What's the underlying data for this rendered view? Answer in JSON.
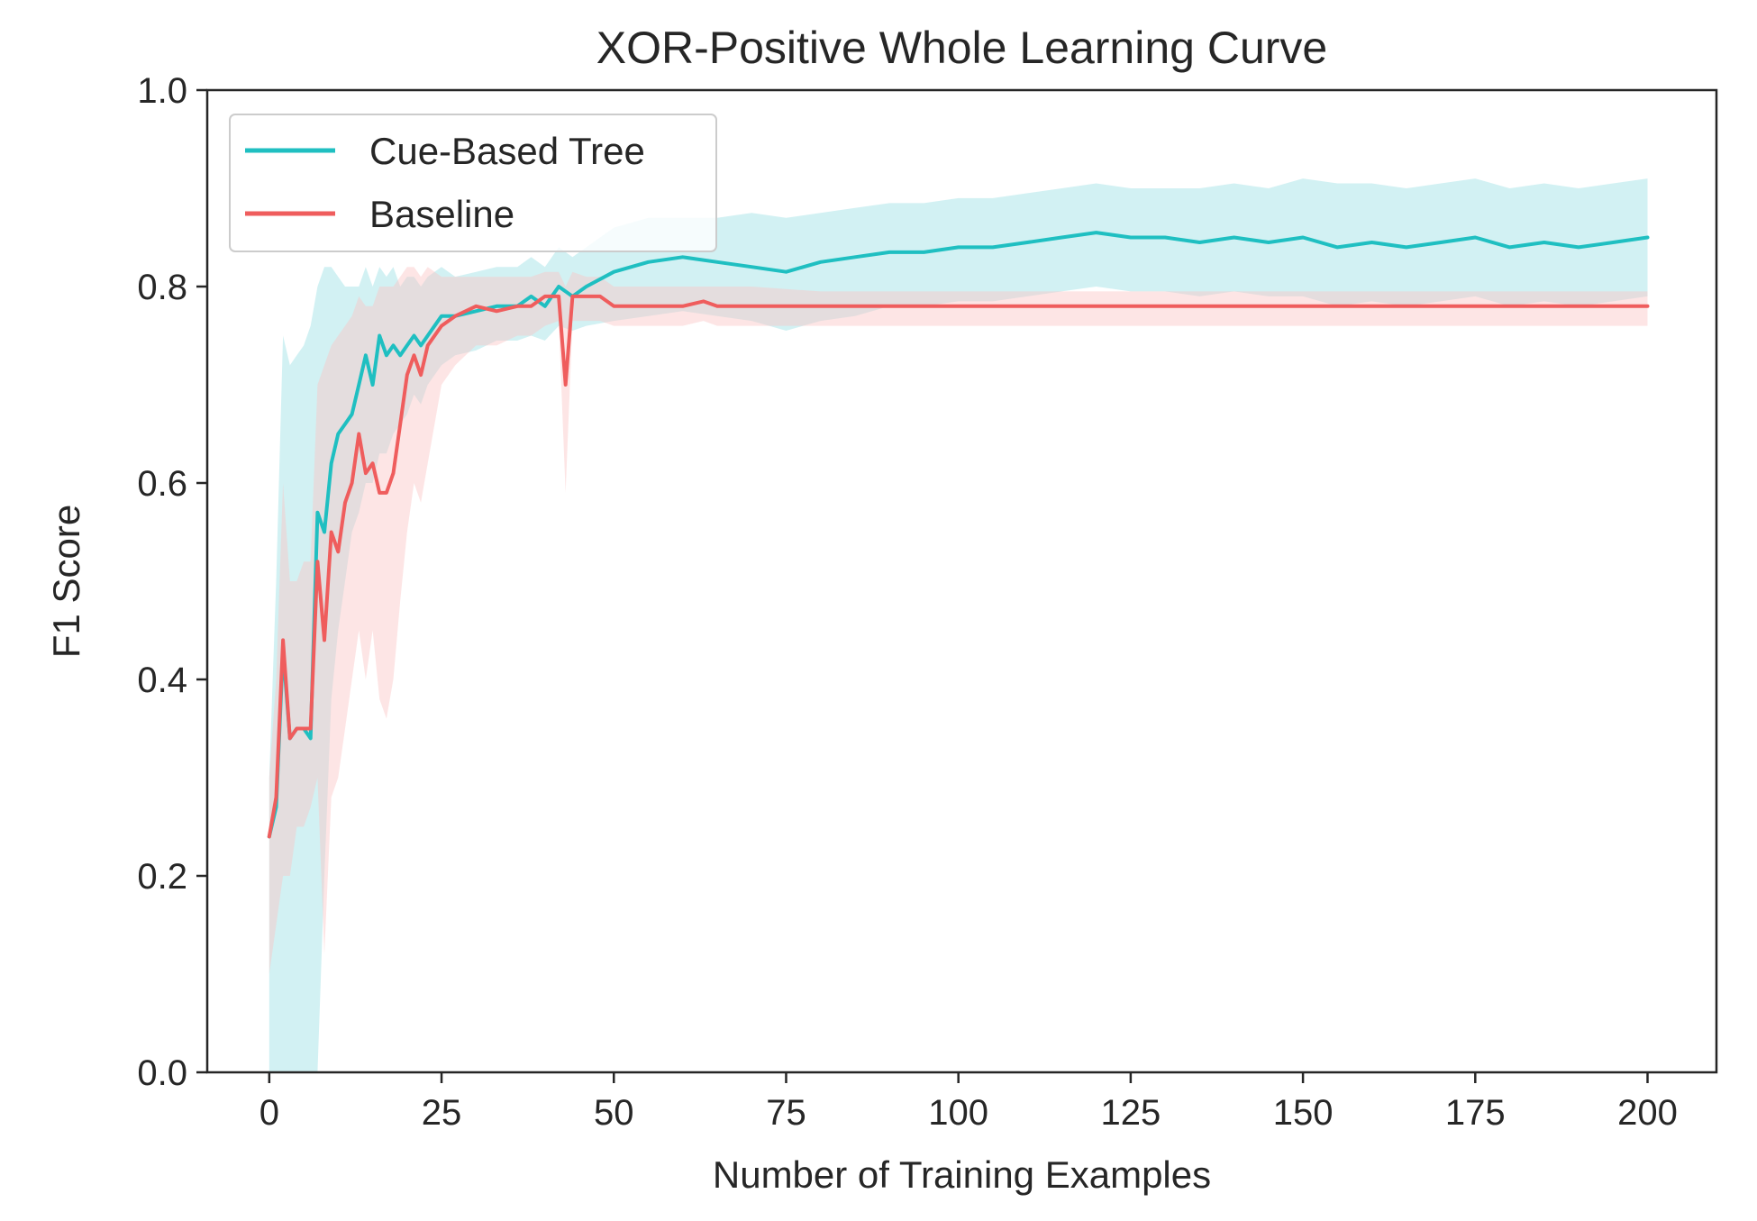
{
  "chart_data": {
    "type": "line",
    "title": "XOR-Positive Whole Learning Curve",
    "xlabel": "Number of Training Examples",
    "ylabel": "F1 Score",
    "xlim": [
      -9,
      210
    ],
    "ylim": [
      0.0,
      1.0
    ],
    "xticks": [
      0,
      25,
      50,
      75,
      100,
      125,
      150,
      175,
      200
    ],
    "yticks": [
      0.0,
      0.2,
      0.4,
      0.6,
      0.8,
      1.0
    ],
    "xtick_labels": [
      "0",
      "25",
      "50",
      "75",
      "100",
      "125",
      "150",
      "175",
      "200"
    ],
    "ytick_labels": [
      "0.0",
      "0.2",
      "0.4",
      "0.6",
      "0.8",
      "1.0"
    ],
    "grid": false,
    "legend_position": "upper-left",
    "series": [
      {
        "name": "Cue-Based Tree",
        "color": "#1fbfc1",
        "band_color": "#8fdde0",
        "x": [
          0,
          1,
          2,
          3,
          4,
          5,
          6,
          7,
          8,
          9,
          10,
          11,
          12,
          13,
          14,
          15,
          16,
          17,
          18,
          19,
          20,
          21,
          22,
          23,
          25,
          27,
          30,
          33,
          36,
          38,
          40,
          42,
          44,
          46,
          50,
          55,
          60,
          65,
          70,
          75,
          80,
          85,
          90,
          95,
          100,
          105,
          110,
          115,
          120,
          125,
          130,
          135,
          140,
          145,
          150,
          155,
          160,
          165,
          170,
          175,
          180,
          185,
          190,
          195,
          200
        ],
        "y": [
          0.24,
          0.27,
          0.43,
          0.34,
          0.35,
          0.35,
          0.34,
          0.57,
          0.55,
          0.62,
          0.65,
          0.66,
          0.67,
          0.7,
          0.73,
          0.7,
          0.75,
          0.73,
          0.74,
          0.73,
          0.74,
          0.75,
          0.74,
          0.75,
          0.77,
          0.77,
          0.775,
          0.78,
          0.78,
          0.79,
          0.78,
          0.8,
          0.79,
          0.8,
          0.815,
          0.825,
          0.83,
          0.825,
          0.82,
          0.815,
          0.825,
          0.83,
          0.835,
          0.835,
          0.84,
          0.84,
          0.845,
          0.85,
          0.855,
          0.85,
          0.85,
          0.845,
          0.85,
          0.845,
          0.85,
          0.84,
          0.845,
          0.84,
          0.845,
          0.85,
          0.84,
          0.845,
          0.84,
          0.845,
          0.85
        ],
        "lower": [
          0.0,
          0.0,
          0.0,
          0.0,
          0.0,
          0.0,
          0.0,
          0.0,
          0.2,
          0.38,
          0.45,
          0.5,
          0.55,
          0.57,
          0.6,
          0.6,
          0.63,
          0.63,
          0.65,
          0.66,
          0.67,
          0.69,
          0.68,
          0.7,
          0.72,
          0.73,
          0.735,
          0.745,
          0.745,
          0.75,
          0.745,
          0.76,
          0.755,
          0.76,
          0.765,
          0.77,
          0.775,
          0.77,
          0.765,
          0.755,
          0.765,
          0.77,
          0.78,
          0.78,
          0.785,
          0.785,
          0.79,
          0.795,
          0.8,
          0.795,
          0.795,
          0.79,
          0.795,
          0.79,
          0.79,
          0.78,
          0.785,
          0.78,
          0.785,
          0.79,
          0.78,
          0.785,
          0.78,
          0.785,
          0.79
        ],
        "upper": [
          0.3,
          0.5,
          0.75,
          0.72,
          0.73,
          0.74,
          0.76,
          0.8,
          0.82,
          0.82,
          0.81,
          0.8,
          0.8,
          0.8,
          0.82,
          0.8,
          0.82,
          0.81,
          0.82,
          0.8,
          0.81,
          0.81,
          0.8,
          0.81,
          0.82,
          0.81,
          0.815,
          0.82,
          0.82,
          0.83,
          0.82,
          0.84,
          0.83,
          0.84,
          0.86,
          0.87,
          0.87,
          0.87,
          0.875,
          0.87,
          0.875,
          0.88,
          0.885,
          0.885,
          0.89,
          0.89,
          0.895,
          0.9,
          0.905,
          0.9,
          0.9,
          0.9,
          0.905,
          0.9,
          0.91,
          0.905,
          0.905,
          0.9,
          0.905,
          0.91,
          0.9,
          0.905,
          0.9,
          0.905,
          0.91
        ]
      },
      {
        "name": "Baseline",
        "color": "#ef5d5d",
        "band_color": "#fbc6c6",
        "x": [
          0,
          1,
          2,
          3,
          4,
          5,
          6,
          7,
          8,
          9,
          10,
          11,
          12,
          13,
          14,
          15,
          16,
          17,
          18,
          19,
          20,
          21,
          22,
          23,
          25,
          27,
          30,
          33,
          36,
          38,
          40,
          42,
          43,
          44,
          46,
          48,
          50,
          55,
          60,
          63,
          65,
          70,
          80,
          100,
          150,
          200
        ],
        "y": [
          0.24,
          0.28,
          0.44,
          0.34,
          0.35,
          0.35,
          0.35,
          0.52,
          0.44,
          0.55,
          0.53,
          0.58,
          0.6,
          0.65,
          0.61,
          0.62,
          0.59,
          0.59,
          0.61,
          0.66,
          0.71,
          0.73,
          0.71,
          0.74,
          0.76,
          0.77,
          0.78,
          0.775,
          0.78,
          0.78,
          0.79,
          0.79,
          0.7,
          0.79,
          0.79,
          0.79,
          0.78,
          0.78,
          0.78,
          0.785,
          0.78,
          0.78,
          0.78,
          0.78,
          0.78,
          0.78
        ],
        "lower": [
          0.1,
          0.15,
          0.2,
          0.2,
          0.25,
          0.25,
          0.27,
          0.3,
          0.12,
          0.28,
          0.3,
          0.35,
          0.4,
          0.45,
          0.4,
          0.45,
          0.38,
          0.36,
          0.4,
          0.48,
          0.55,
          0.6,
          0.58,
          0.62,
          0.7,
          0.72,
          0.74,
          0.74,
          0.75,
          0.75,
          0.76,
          0.765,
          0.59,
          0.765,
          0.765,
          0.765,
          0.76,
          0.76,
          0.76,
          0.765,
          0.76,
          0.76,
          0.76,
          0.76,
          0.76,
          0.76
        ],
        "upper": [
          0.3,
          0.4,
          0.6,
          0.5,
          0.5,
          0.52,
          0.52,
          0.7,
          0.72,
          0.74,
          0.75,
          0.76,
          0.77,
          0.79,
          0.78,
          0.78,
          0.8,
          0.8,
          0.8,
          0.81,
          0.82,
          0.82,
          0.81,
          0.82,
          0.81,
          0.81,
          0.81,
          0.81,
          0.81,
          0.81,
          0.815,
          0.815,
          0.8,
          0.815,
          0.81,
          0.81,
          0.8,
          0.8,
          0.8,
          0.8,
          0.8,
          0.8,
          0.795,
          0.795,
          0.795,
          0.795
        ]
      }
    ]
  }
}
